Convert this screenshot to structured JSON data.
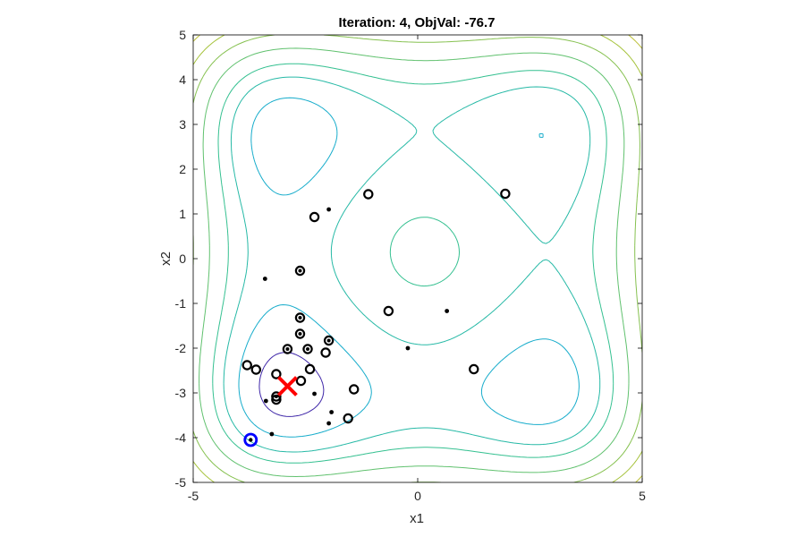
{
  "chart_data": {
    "type": "scatter",
    "title": "Iteration: 4,  ObjVal:  -76.7",
    "xlabel": "x1",
    "ylabel": "x2",
    "xlim": [
      -5,
      5
    ],
    "ylim": [
      -5,
      5
    ],
    "x_ticks": [
      "-5",
      "0",
      "5"
    ],
    "y_ticks": [
      "-5",
      "-4",
      "-3",
      "-2",
      "-1",
      "0",
      "1",
      "2",
      "3",
      "4",
      "5"
    ],
    "background": "contour plot of objective function with four local minima",
    "contour_levels": [
      -70,
      -50,
      -25,
      0,
      40,
      90,
      150,
      220,
      300,
      400,
      520,
      660,
      820,
      1000,
      1200
    ],
    "colors": {
      "contour_low": "#3e26a8",
      "contour_high": "#f9fb15",
      "open_marker": "#000000",
      "best_marker": "#0000ff",
      "current_marker": "#ff0000"
    },
    "series": [
      {
        "marker": "open-circle",
        "points": [
          [
            -2.3,
            0.93
          ],
          [
            -1.1,
            1.44
          ],
          [
            1.95,
            1.45
          ],
          [
            -0.65,
            -1.17
          ],
          [
            1.25,
            -2.47
          ],
          [
            -3.8,
            -2.38
          ],
          [
            -3.6,
            -2.48
          ],
          [
            -3.15,
            -2.58
          ],
          [
            -2.4,
            -2.47
          ],
          [
            -2.6,
            -2.73
          ],
          [
            -2.05,
            -2.1
          ],
          [
            -1.42,
            -2.92
          ],
          [
            -1.55,
            -3.57
          ],
          [
            -3.15,
            -3.15
          ]
        ]
      },
      {
        "marker": "ringed-dot",
        "points": [
          [
            -2.62,
            -0.27
          ],
          [
            -2.62,
            -1.32
          ],
          [
            -2.62,
            -1.68
          ],
          [
            -2.9,
            -2.02
          ],
          [
            -2.45,
            -2.02
          ],
          [
            -1.98,
            -1.83
          ],
          [
            -3.15,
            -3.08
          ]
        ]
      },
      {
        "marker": "dot",
        "points": [
          [
            -3.4,
            -0.45
          ],
          [
            -1.98,
            1.1
          ],
          [
            0.65,
            -1.17
          ],
          [
            -0.22,
            -2.0
          ],
          [
            -3.38,
            -3.18
          ],
          [
            -3.25,
            -3.92
          ],
          [
            -1.92,
            -3.43
          ],
          [
            -1.98,
            -3.68
          ],
          [
            -2.3,
            -3.02
          ]
        ]
      },
      {
        "marker": "best-circle",
        "points": [
          [
            -3.72,
            -4.05
          ]
        ]
      },
      {
        "marker": "current-x",
        "points": [
          [
            -2.9,
            -2.85
          ]
        ]
      }
    ]
  }
}
